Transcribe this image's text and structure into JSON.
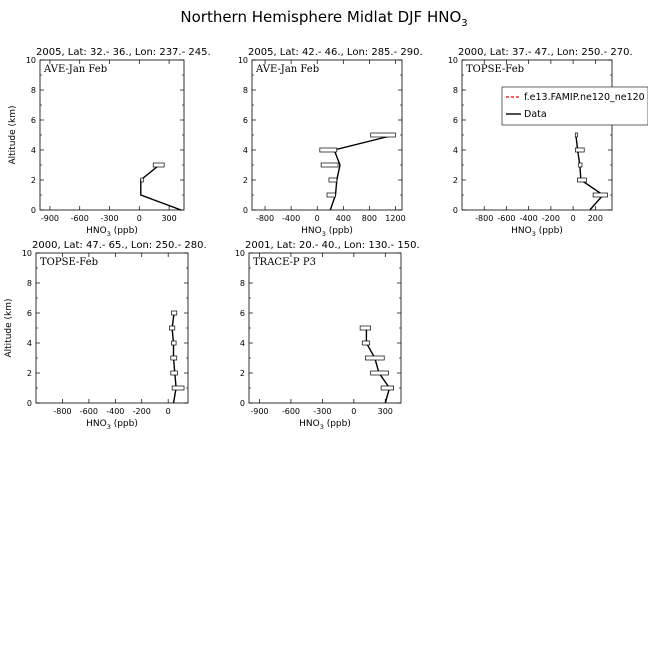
{
  "figure_title": "Northern Hemisphere Midlat DJF HNO",
  "figure_title_sub": "3",
  "x_axis_label": "HNO",
  "x_axis_label_sub": "3",
  "x_axis_label_unit": " (ppb)",
  "y_axis_label": "Altitude (km)",
  "legend": {
    "model_label": "f.e13.FAMIP.ne120_ne120",
    "data_label": "Data",
    "model_color": "#ff0000",
    "data_color": "#000000"
  },
  "chart_data": [
    {
      "type": "line",
      "title": "2005, Lat: 32.- 36., Lon: 237.- 245.",
      "label": "AVE-Jan Feb",
      "xlim": [
        -1000,
        450
      ],
      "ylim": [
        0,
        10
      ],
      "xticks": [
        -900,
        -600,
        -300,
        0,
        300
      ],
      "yticks": [
        0,
        2,
        4,
        6,
        8,
        10
      ],
      "series": [
        {
          "y": [
            0,
            1,
            2,
            3
          ],
          "x": [
            420,
            15,
            15,
            200
          ],
          "x_min": [
            null,
            null,
            15,
            140
          ],
          "x_max": [
            null,
            null,
            40,
            250
          ]
        }
      ]
    },
    {
      "type": "line",
      "title": "2005, Lat: 42.- 46., Lon: 285.- 290.",
      "label": "AVE-Jan Feb",
      "xlim": [
        -1000,
        1300
      ],
      "ylim": [
        0,
        10
      ],
      "xticks": [
        -800,
        -400,
        0,
        400,
        800,
        1200
      ],
      "yticks": [
        0,
        2,
        4,
        6,
        8,
        10
      ],
      "series": [
        {
          "y": [
            0,
            1,
            2,
            3,
            4,
            5
          ],
          "x": [
            200,
            280,
            300,
            350,
            260,
            1180
          ],
          "x_min": [
            null,
            150,
            180,
            60,
            40,
            820
          ],
          "x_max": [
            null,
            280,
            300,
            320,
            300,
            1200
          ]
        }
      ]
    },
    {
      "type": "line",
      "title": "2000, Lat: 37.- 47., Lon: 250.- 270.",
      "label": "TOPSE-Feb",
      "xlim": [
        -1000,
        350
      ],
      "ylim": [
        0,
        10
      ],
      "xticks": [
        -800,
        -600,
        -400,
        -200,
        0,
        200
      ],
      "yticks": [
        0,
        2,
        4,
        6,
        8,
        10
      ],
      "series": [
        {
          "y": [
            0,
            1,
            2,
            3,
            4,
            5
          ],
          "x": [
            150,
            270,
            70,
            60,
            40,
            25
          ],
          "x_min": [
            null,
            180,
            40,
            50,
            20,
            20
          ],
          "x_max": [
            null,
            310,
            120,
            80,
            100,
            40
          ]
        }
      ]
    },
    {
      "type": "line",
      "title": "2000, Lat: 47.- 65., Lon: 250.- 280.",
      "label": "TOPSE-Feb",
      "xlim": [
        -1000,
        150
      ],
      "ylim": [
        0,
        10
      ],
      "xticks": [
        -800,
        -600,
        -400,
        -200,
        0
      ],
      "yticks": [
        0,
        2,
        4,
        6,
        8,
        10
      ],
      "series": [
        {
          "y": [
            0,
            1,
            2,
            3,
            4,
            5,
            6
          ],
          "x": [
            40,
            60,
            50,
            40,
            40,
            30,
            45
          ],
          "x_min": [
            null,
            30,
            20,
            20,
            25,
            10,
            25
          ],
          "x_max": [
            null,
            120,
            70,
            65,
            60,
            50,
            65
          ]
        }
      ]
    },
    {
      "type": "line",
      "title": "2001, Lat: 20.- 40., Lon: 130.- 150.",
      "label": "TRACE-P P3",
      "xlim": [
        -1000,
        450
      ],
      "ylim": [
        0,
        10
      ],
      "xticks": [
        -900,
        -600,
        -300,
        0,
        300
      ],
      "yticks": [
        0,
        2,
        4,
        6,
        8,
        10
      ],
      "series": [
        {
          "y": [
            0,
            1,
            2,
            3,
            4,
            5
          ],
          "x": [
            300,
            340,
            240,
            200,
            120,
            120
          ],
          "x_min": [
            null,
            260,
            160,
            110,
            80,
            60
          ],
          "x_max": [
            null,
            380,
            330,
            290,
            150,
            160
          ]
        }
      ]
    }
  ]
}
